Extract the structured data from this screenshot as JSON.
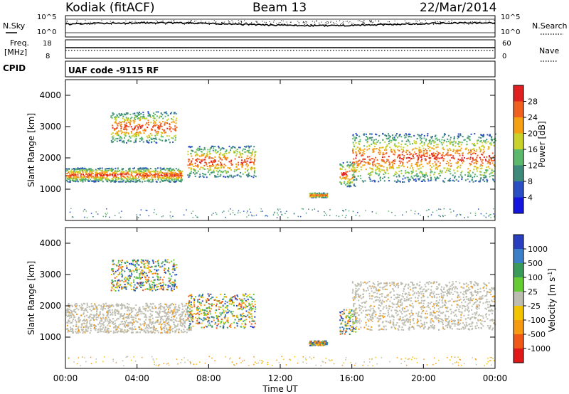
{
  "header": {
    "left": "Kodiak (fitACF)",
    "center": "Beam 13",
    "right": "22/Mar/2014"
  },
  "strip": {
    "nsky_label": "N.Sky",
    "nsky_ticks": [
      "10^5",
      "10^0"
    ],
    "nsearch_label": "N.Search",
    "nsearch_ticks": [
      "10^5",
      "10^0"
    ],
    "freq_label_1": "Freq.",
    "freq_label_2": "[MHz]",
    "freq_ticks": [
      "18",
      "8"
    ],
    "nave_label": "Nave",
    "nave_ticks": [
      "60",
      "0"
    ],
    "cpid_label": "CPID",
    "cpid_value": "UAF code -9115 RF"
  },
  "chart_data": [
    {
      "type": "heatmap",
      "title": "Power",
      "ylabel": "Slant Range [km]",
      "xlabel": "",
      "x_range": [
        "00:00",
        "24:00"
      ],
      "ylim": [
        0,
        4500
      ],
      "y_ticks": [
        1000,
        2000,
        3000,
        4000
      ],
      "colorbar": {
        "label": "Power [dB]",
        "ticks": [
          "4",
          "8",
          "12",
          "16",
          "20",
          "24",
          "28"
        ],
        "colors": [
          "#1515e0",
          "#2a4fc4",
          "#3d8a7a",
          "#5cb86a",
          "#c8d22a",
          "#f5a012",
          "#f06020",
          "#e02020"
        ]
      },
      "regions": [
        {
          "t": [
            0.0,
            6.5
          ],
          "range": [
            1250,
            1700
          ],
          "note": "band"
        },
        {
          "t": [
            2.5,
            6.2
          ],
          "range": [
            2500,
            3500
          ],
          "note": "patches"
        },
        {
          "t": [
            6.8,
            10.6
          ],
          "range": [
            1400,
            2400
          ],
          "note": "patches"
        },
        {
          "t": [
            13.6,
            14.6
          ],
          "range": [
            750,
            900
          ],
          "note": "patch"
        },
        {
          "t": [
            15.3,
            16.2
          ],
          "range": [
            1100,
            1900
          ],
          "note": "patch"
        },
        {
          "t": [
            16.0,
            24.0
          ],
          "range": [
            1250,
            2800
          ],
          "note": "band"
        }
      ]
    },
    {
      "type": "heatmap",
      "title": "Velocity",
      "ylabel": "Slant Range [km]",
      "xlabel": "Time UT",
      "x_ticks": [
        "00:00",
        "04:00",
        "08:00",
        "12:00",
        "16:00",
        "20:00",
        "00:00"
      ],
      "ylim": [
        0,
        4500
      ],
      "y_ticks": [
        1000,
        2000,
        3000,
        4000
      ],
      "colorbar": {
        "label": "Velocity [m s^-1]",
        "ticks": [
          "1000",
          "500",
          "100",
          "25",
          "-25",
          "-100",
          "-500",
          "-1000"
        ],
        "colors": [
          "#2a3fc0",
          "#3a7fc8",
          "#3a9a5a",
          "#66cc33",
          "#bcbcb0",
          "#f2c400",
          "#f59a10",
          "#f05818",
          "#e01818"
        ]
      },
      "regions": [
        {
          "t": [
            0.0,
            7.0
          ],
          "range": [
            1150,
            2100
          ],
          "note": "ground scatter"
        },
        {
          "t": [
            2.5,
            6.2
          ],
          "range": [
            2500,
            3500
          ],
          "note": "patches"
        },
        {
          "t": [
            6.8,
            10.6
          ],
          "range": [
            1300,
            2400
          ],
          "note": "patches"
        },
        {
          "t": [
            13.6,
            14.6
          ],
          "range": [
            750,
            900
          ],
          "note": "patch"
        },
        {
          "t": [
            15.3,
            16.2
          ],
          "range": [
            1100,
            1900
          ],
          "note": "patch"
        },
        {
          "t": [
            16.0,
            24.0
          ],
          "range": [
            1250,
            2800
          ],
          "note": "ground scatter"
        }
      ]
    }
  ]
}
